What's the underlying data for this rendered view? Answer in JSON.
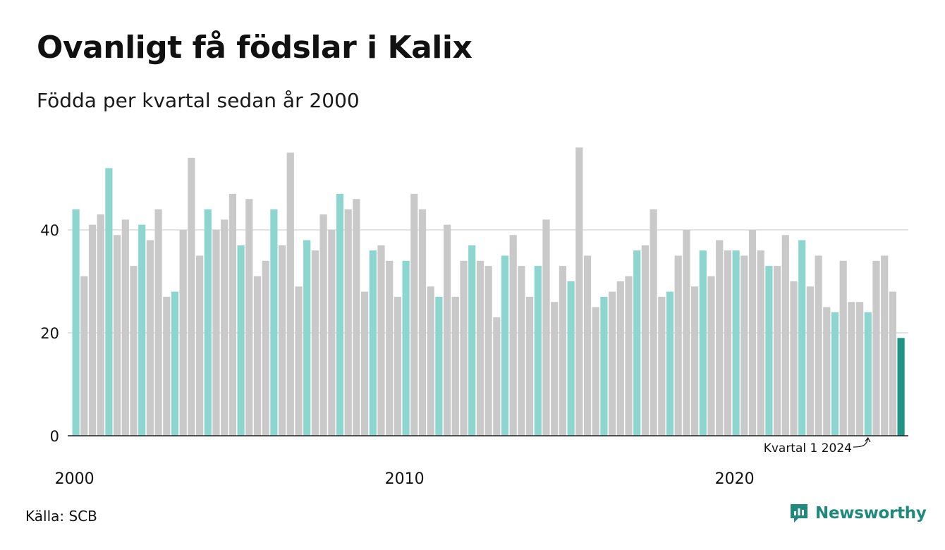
{
  "header": {
    "title": "Ovanligt få födslar i Kalix",
    "subtitle": "Födda per kvartal sedan år 2000"
  },
  "footer": {
    "source": "Källa: SCB",
    "brand": "Newsworthy"
  },
  "colors": {
    "q1_bar": "#8dd6cf",
    "other_bar": "#c9c9c9",
    "highlight_bar": "#1f9484",
    "gridline": "#e2e2e2",
    "axis": "#222222",
    "brand": "#1f8a7c"
  },
  "chart_data": {
    "type": "bar",
    "title": "Ovanligt få födslar i Kalix",
    "subtitle": "Födda per kvartal sedan år 2000",
    "xlabel": "",
    "ylabel": "",
    "ylim": [
      0,
      57
    ],
    "yticks": [
      0,
      20,
      40
    ],
    "xticks": [
      "2000",
      "2010",
      "2020"
    ],
    "grid": true,
    "annotation": {
      "text": "Kvartal 1 2024",
      "target_index": 96
    },
    "start_year": 2000,
    "values": [
      44,
      31,
      41,
      43,
      52,
      39,
      42,
      33,
      41,
      38,
      44,
      27,
      28,
      40,
      54,
      35,
      44,
      40,
      42,
      47,
      37,
      46,
      31,
      34,
      44,
      37,
      55,
      29,
      38,
      36,
      43,
      40,
      47,
      44,
      46,
      28,
      36,
      37,
      34,
      27,
      34,
      47,
      44,
      29,
      27,
      41,
      27,
      34,
      37,
      34,
      33,
      23,
      35,
      39,
      33,
      27,
      33,
      42,
      26,
      33,
      30,
      56,
      35,
      25,
      27,
      28,
      30,
      31,
      36,
      37,
      44,
      27,
      28,
      35,
      40,
      29,
      36,
      31,
      38,
      36,
      36,
      35,
      40,
      36,
      33,
      33,
      39,
      30,
      38,
      29,
      35,
      25,
      24,
      34,
      26,
      26,
      24,
      34,
      35,
      28,
      19
    ]
  }
}
